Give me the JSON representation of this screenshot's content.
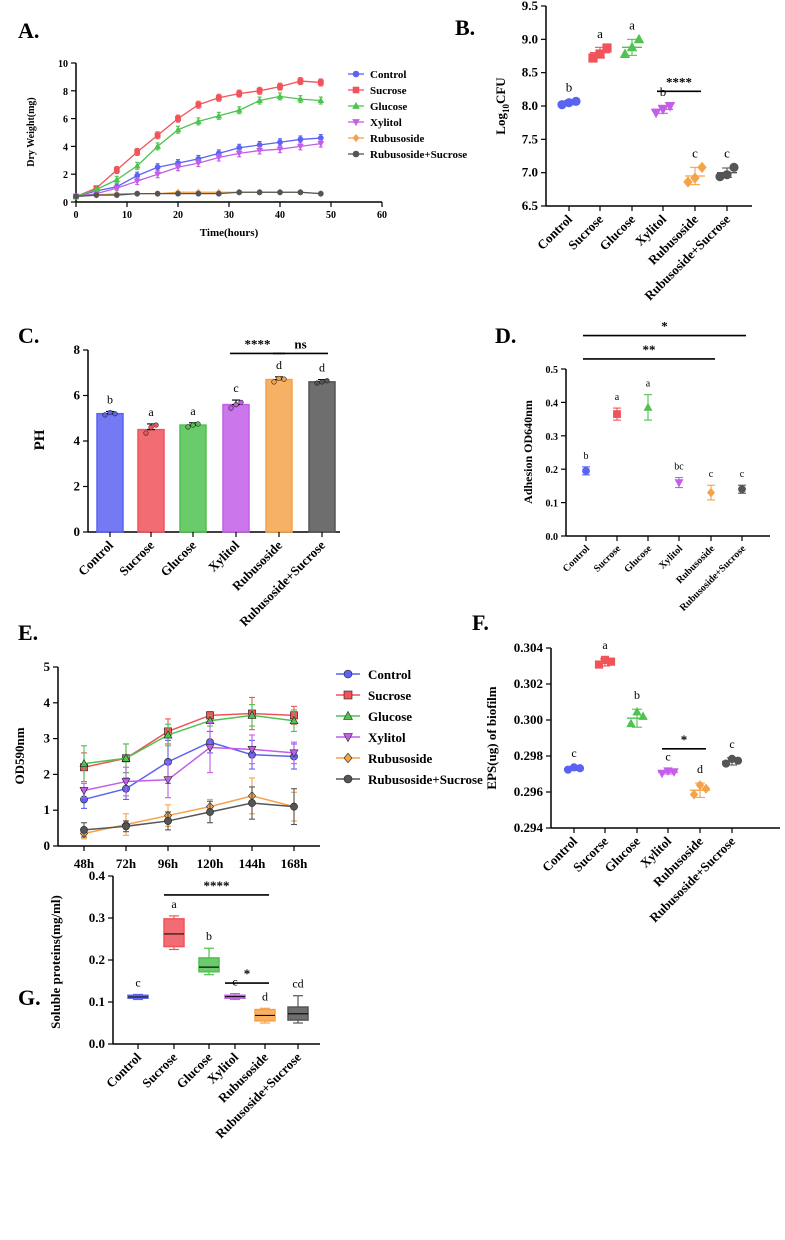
{
  "colors": {
    "Control": "#5b63f2",
    "Sucrose": "#f0545a",
    "Glucose": "#4fc24f",
    "Xylitol": "#c25ee8",
    "Rubusoside": "#f5a34a",
    "Rubusoside+Sucrose": "#555555"
  },
  "chart_data": [
    {
      "id": "A",
      "panel_label": "A.",
      "type": "line",
      "title": "",
      "xlabel": "Time(hours)",
      "ylabel": "Dry Weight(mg)",
      "xlim": [
        0,
        60
      ],
      "ylim": [
        0,
        10
      ],
      "xticks": [
        0,
        10,
        20,
        30,
        40,
        50,
        60
      ],
      "yticks": [
        0,
        2,
        4,
        6,
        8,
        10
      ],
      "x": [
        0,
        4,
        8,
        12,
        16,
        20,
        24,
        28,
        32,
        36,
        40,
        44,
        48
      ],
      "legend_position": "top-right",
      "series": [
        {
          "name": "Control",
          "marker": "circle",
          "values": [
            0.4,
            0.8,
            1.1,
            1.9,
            2.5,
            2.8,
            3.1,
            3.5,
            3.9,
            4.1,
            4.3,
            4.5,
            4.6
          ]
        },
        {
          "name": "Sucrose",
          "marker": "square",
          "values": [
            0.4,
            1.0,
            2.3,
            3.6,
            4.8,
            6.0,
            7.0,
            7.5,
            7.8,
            8.0,
            8.3,
            8.7,
            8.6
          ]
        },
        {
          "name": "Glucose",
          "marker": "triangle",
          "values": [
            0.4,
            0.9,
            1.6,
            2.6,
            4.0,
            5.2,
            5.8,
            6.2,
            6.6,
            7.3,
            7.6,
            7.4,
            7.3
          ]
        },
        {
          "name": "Xylitol",
          "marker": "triangle-down",
          "values": [
            0.4,
            0.6,
            1.0,
            1.5,
            2.0,
            2.5,
            2.8,
            3.2,
            3.5,
            3.7,
            3.8,
            4.0,
            4.2
          ]
        },
        {
          "name": "Rubusoside",
          "marker": "diamond",
          "values": [
            0.4,
            0.5,
            0.6,
            0.6,
            0.6,
            0.7,
            0.7,
            0.7,
            0.7,
            0.7,
            0.7,
            0.7,
            0.6
          ]
        },
        {
          "name": "Rubusoside+Sucrose",
          "marker": "circle",
          "values": [
            0.4,
            0.5,
            0.5,
            0.6,
            0.6,
            0.6,
            0.6,
            0.6,
            0.7,
            0.7,
            0.7,
            0.7,
            0.6
          ]
        }
      ]
    },
    {
      "id": "B",
      "panel_label": "B.",
      "type": "scatter",
      "title": "",
      "ylabel_main": "Log",
      "ylabel_sub": "10",
      "ylabel_tail": "CFU",
      "ylim": [
        6.5,
        9.5
      ],
      "yticks": [
        "6.5",
        "7.0",
        "7.5",
        "8.0",
        "8.5",
        "9.0",
        "9.5"
      ],
      "categories": [
        "Control",
        "Sucrose",
        "Glucose",
        "Xylitol",
        "Rubusoside",
        "Rubusoside+Sucrose"
      ],
      "markers": [
        "circle",
        "square",
        "triangle",
        "triangle-down",
        "diamond",
        "circle"
      ],
      "points": [
        [
          8.02,
          8.07,
          8.05
        ],
        [
          8.72,
          8.87,
          8.78
        ],
        [
          8.78,
          9.0,
          8.88
        ],
        [
          7.9,
          8.0,
          7.95
        ],
        [
          6.86,
          7.08,
          6.92
        ],
        [
          6.94,
          7.08,
          6.97
        ]
      ],
      "means": [
        8.05,
        8.8,
        8.88,
        7.95,
        6.95,
        7.0
      ],
      "errors": [
        0.03,
        0.08,
        0.12,
        0.06,
        0.13,
        0.07
      ],
      "letters": [
        "b",
        "a",
        "a",
        "b",
        "c",
        "c"
      ],
      "significance": [
        {
          "from": 3,
          "to": 4,
          "label": "****",
          "y": 8.22
        }
      ]
    },
    {
      "id": "C",
      "panel_label": "C.",
      "type": "bar",
      "title": "",
      "ylabel": "PH",
      "ylim": [
        0,
        8
      ],
      "yticks": [
        0,
        2,
        4,
        6,
        8
      ],
      "categories": [
        "Control",
        "Sucrose",
        "Glucose",
        "Xylitol",
        "Rubusoside",
        "Rubusoside+Sucrose"
      ],
      "values": [
        5.2,
        4.5,
        4.7,
        5.6,
        6.7,
        6.6
      ],
      "errors": [
        0.1,
        0.25,
        0.1,
        0.2,
        0.12,
        0.1
      ],
      "points": [
        [
          5.15,
          5.25,
          5.2
        ],
        [
          4.35,
          4.6,
          4.7
        ],
        [
          4.62,
          4.7,
          4.75
        ],
        [
          5.45,
          5.6,
          5.7
        ],
        [
          6.6,
          6.75,
          6.72
        ],
        [
          6.55,
          6.6,
          6.65
        ]
      ],
      "letters": [
        "b",
        "a",
        "a",
        "c",
        "d",
        "d"
      ],
      "significance": [
        {
          "from": 3,
          "to": 4,
          "label": "****",
          "y": 7.85
        },
        {
          "from": 4,
          "to": 5,
          "label": "ns",
          "y": 7.85
        }
      ]
    },
    {
      "id": "D",
      "panel_label": "D.",
      "type": "scatter",
      "title": "",
      "ylabel": "Adhesion OD640nm",
      "ylim": [
        0,
        0.5
      ],
      "yticks": [
        "0.0",
        "0.1",
        "0.2",
        "0.3",
        "0.4",
        "0.5"
      ],
      "categories": [
        "Control",
        "Sucrose",
        "Glucose",
        "Xylitol",
        "Rubusoside",
        "Rubusoside+Sucrose"
      ],
      "markers": [
        "circle",
        "square",
        "triangle",
        "triangle-down",
        "diamond",
        "circle"
      ],
      "means": [
        0.195,
        0.365,
        0.385,
        0.16,
        0.13,
        0.14
      ],
      "errors": [
        0.012,
        0.018,
        0.038,
        0.015,
        0.022,
        0.012
      ],
      "letters": [
        "b",
        "a",
        "a",
        "bc",
        "c",
        "c"
      ],
      "significance": [
        {
          "from": 0,
          "to": 5,
          "label": "*",
          "y": 0.6
        },
        {
          "from": 0,
          "to": 4,
          "label": "**",
          "y": 0.53
        }
      ]
    },
    {
      "id": "E",
      "panel_label": "E.",
      "type": "line",
      "title": "",
      "xlabel": "",
      "ylabel": "OD590nm",
      "ylim": [
        0,
        5
      ],
      "yticks": [
        0,
        1,
        2,
        3,
        4,
        5
      ],
      "categories": [
        "48h",
        "72h",
        "96h",
        "120h",
        "144h",
        "168h"
      ],
      "legend_position": "right",
      "series": [
        {
          "name": "Control",
          "marker": "circle",
          "values": [
            1.3,
            1.6,
            2.35,
            2.9,
            2.55,
            2.5
          ],
          "errors": [
            0.25,
            0.3,
            0.6,
            0.3,
            0.4,
            0.35
          ]
        },
        {
          "name": "Sucrose",
          "marker": "square",
          "values": [
            2.2,
            2.45,
            3.2,
            3.65,
            3.7,
            3.65
          ],
          "errors": [
            0.4,
            0.4,
            0.35,
            0.1,
            0.45,
            0.25
          ]
        },
        {
          "name": "Glucose",
          "marker": "triangle",
          "values": [
            2.3,
            2.45,
            3.1,
            3.5,
            3.65,
            3.5
          ],
          "errors": [
            0.5,
            0.4,
            0.3,
            0.15,
            0.3,
            0.3
          ]
        },
        {
          "name": "Xylitol",
          "marker": "triangle-down",
          "values": [
            1.55,
            1.8,
            1.85,
            2.75,
            2.7,
            2.6
          ],
          "errors": [
            0.2,
            0.4,
            0.5,
            0.7,
            0.4,
            0.3
          ]
        },
        {
          "name": "Rubusoside",
          "marker": "diamond",
          "values": [
            0.35,
            0.6,
            0.85,
            1.1,
            1.4,
            1.1
          ],
          "errors": [
            0.15,
            0.3,
            0.3,
            0.2,
            0.5,
            0.4
          ]
        },
        {
          "name": "Rubusoside+Sucrose",
          "marker": "circle",
          "values": [
            0.45,
            0.55,
            0.7,
            0.95,
            1.2,
            1.1
          ],
          "errors": [
            0.2,
            0.15,
            0.25,
            0.3,
            0.45,
            0.5
          ]
        }
      ]
    },
    {
      "id": "F",
      "panel_label": "F.",
      "type": "scatter",
      "title": "",
      "ylabel": "EPS(ug) of biofilm",
      "ylim": [
        0.294,
        0.304
      ],
      "yticks": [
        "0.294",
        "0.296",
        "0.298",
        "0.300",
        "0.302",
        "0.304"
      ],
      "categories": [
        "Control",
        "Sucorse",
        "Glucose",
        "Xylitol",
        "Rubusoside",
        "Rubusoside+Sucrose"
      ],
      "markers": [
        "circle",
        "square",
        "triangle",
        "triangle-down",
        "diamond",
        "circle"
      ],
      "means": [
        0.2973,
        0.3032,
        0.3001,
        0.2971,
        0.2961,
        0.2977
      ],
      "errors": [
        0.0001,
        0.0002,
        0.0005,
        0.0001,
        0.0004,
        0.0002
      ],
      "letters": [
        "c",
        "a",
        "b",
        "c",
        "d",
        "c"
      ],
      "significance": [
        {
          "from": 3,
          "to": 4,
          "label": "*",
          "y": 0.2984
        }
      ]
    },
    {
      "id": "G",
      "panel_label": "G.",
      "type": "box",
      "title": "",
      "ylabel": "Soluble proteins(mg/ml)",
      "ylim": [
        0,
        0.4
      ],
      "yticks": [
        "0.0",
        "0.1",
        "0.2",
        "0.3",
        "0.4"
      ],
      "categories": [
        "Control",
        "Sucrose",
        "Glucose",
        "Xylitol",
        "Rubusoside",
        "Rubusoside+Sucrose"
      ],
      "boxes": [
        {
          "min": 0.106,
          "q1": 0.109,
          "median": 0.112,
          "q3": 0.116,
          "max": 0.118
        },
        {
          "min": 0.225,
          "q1": 0.232,
          "median": 0.262,
          "q3": 0.298,
          "max": 0.305
        },
        {
          "min": 0.165,
          "q1": 0.172,
          "median": 0.183,
          "q3": 0.205,
          "max": 0.228
        },
        {
          "min": 0.106,
          "q1": 0.109,
          "median": 0.113,
          "q3": 0.116,
          "max": 0.12
        },
        {
          "min": 0.05,
          "q1": 0.055,
          "median": 0.068,
          "q3": 0.082,
          "max": 0.085
        },
        {
          "min": 0.05,
          "q1": 0.057,
          "median": 0.072,
          "q3": 0.088,
          "max": 0.115
        }
      ],
      "letters": [
        "c",
        "a",
        "b",
        "c",
        "d",
        "cd"
      ],
      "significance": [
        {
          "from": 1,
          "to": 4,
          "label": "****",
          "y": 0.355
        },
        {
          "from": 3,
          "to": 4,
          "label": "*",
          "y": 0.145
        }
      ]
    }
  ]
}
